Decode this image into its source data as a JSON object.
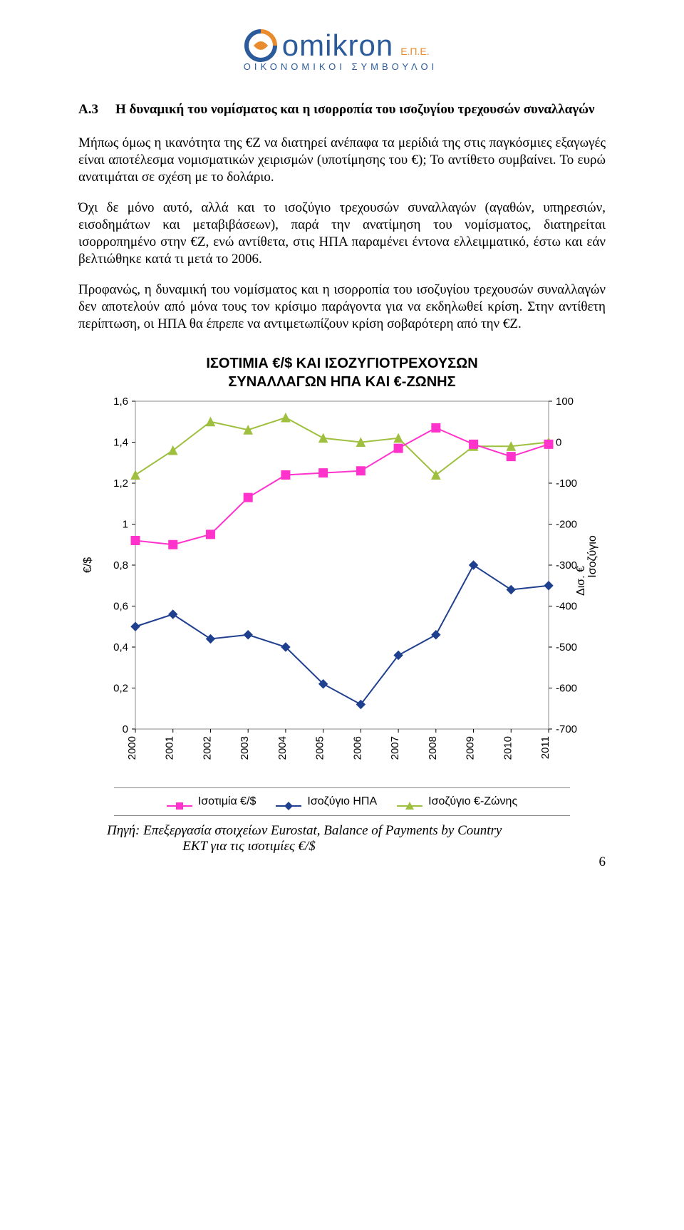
{
  "logo": {
    "name": "omikron",
    "suffix": "Ε.Π.Ε.",
    "subtitle": "ΟΙΚΟΝΟΜΙΚΟΙ ΣΥΜΒΟΥΛΟΙ",
    "brand_blue": "#2b5b9b",
    "brand_orange": "#e98c2e"
  },
  "section": {
    "number": "Α.3",
    "title": "Η δυναμική του νομίσματος και η ισορροπία του ισοζυγίου τρεχουσών συναλλαγών"
  },
  "paragraphs": {
    "p1": "Μήπως όμως η ικανότητα της €Ζ να διατηρεί ανέπαφα τα μερίδιά της στις παγκόσμιες εξαγωγές είναι αποτέλεσμα νομισματικών χειρισμών (υποτίμησης του €);  Το αντίθετο συμβαίνει. Το ευρώ ανατιμάται σε σχέση με το δολάριο.",
    "p2": "Όχι δε μόνο αυτό, αλλά και το ισοζύγιο τρεχουσών συναλλαγών (αγαθών, υπηρεσιών, εισοδημάτων και μεταβιβάσεων), παρά την ανατίμηση του νομίσματος, διατηρείται ισορροπημένο στην €Ζ, ενώ αντίθετα, στις ΗΠΑ παραμένει έντονα ελλειμματικό, έστω και εάν βελτιώθηκε κατά τι μετά το 2006.",
    "p3": "Προφανώς, η δυναμική του νομίσματος και η ισορροπία του ισοζυγίου τρεχουσών συναλλαγών δεν αποτελούν από μόνα τους τον κρίσιμο παράγοντα για να εκδηλωθεί κρίση. Στην αντίθετη περίπτωση, οι ΗΠΑ θα έπρεπε να αντιμετωπίζουν κρίση σοβαρότερη από την €Ζ."
  },
  "chart": {
    "title_line1": "ΙΣΟΤΙΜΙΑ €/$ ΚΑΙ ΙΣΟΖΥΓΙΟΤΡΕΧΟΥΣΩΝ",
    "title_line2": "ΣΥΝΑΛΛΑΓΩΝ ΗΠΑ ΚΑΙ €-ΖΩΝΗΣ",
    "y_left_label": "€/$",
    "y_right_label_line1": "Ισοζύγιο",
    "y_right_label_line2": "Δισ. €",
    "years": [
      "2000",
      "2001",
      "2002",
      "2003",
      "2004",
      "2005",
      "2006",
      "2007",
      "2008",
      "2009",
      "2010",
      "2011"
    ],
    "y_left": {
      "min": 0,
      "max": 1.6,
      "ticks": [
        0,
        0.2,
        0.4,
        0.6,
        0.8,
        1,
        1.2,
        1.4,
        1.6
      ]
    },
    "y_right": {
      "min": -700,
      "max": 100,
      "ticks": [
        100,
        0,
        -100,
        -200,
        -300,
        -400,
        -500,
        -600,
        -700
      ]
    },
    "series": {
      "rate": {
        "label": "Ισοτιμία €/$",
        "color": "#ff33cc",
        "marker": "square",
        "values": [
          0.92,
          0.9,
          0.95,
          1.13,
          1.24,
          1.25,
          1.26,
          1.37,
          1.47,
          1.39,
          1.33,
          1.39
        ]
      },
      "usa": {
        "label": "Ισοζύγιο ΗΠΑ",
        "color": "#1f3f8f",
        "marker": "diamond",
        "values": [
          -450,
          -420,
          -480,
          -470,
          -500,
          -590,
          -640,
          -520,
          -470,
          -300,
          -360,
          -350
        ]
      },
      "ez": {
        "label": "Ισοζύγιο €-Ζώνης",
        "color": "#9fbf3f",
        "marker": "triangle",
        "values": [
          -80,
          -20,
          50,
          30,
          60,
          10,
          0,
          10,
          -80,
          -10,
          -10,
          0
        ]
      }
    },
    "background": "#ffffff",
    "grid_color": "#000000",
    "tick_fontsize": 15,
    "label_fontsize": 16,
    "title_fontsize": 20,
    "line_width": 2,
    "marker_size": 6
  },
  "source": {
    "label": "Πηγή:",
    "line1": "Επεξεργασία στοιχείων Eurostat, Balance of Payments by Country",
    "line2": "ΕΚΤ για τις ισοτιμίες €/$"
  },
  "page_number": "6"
}
